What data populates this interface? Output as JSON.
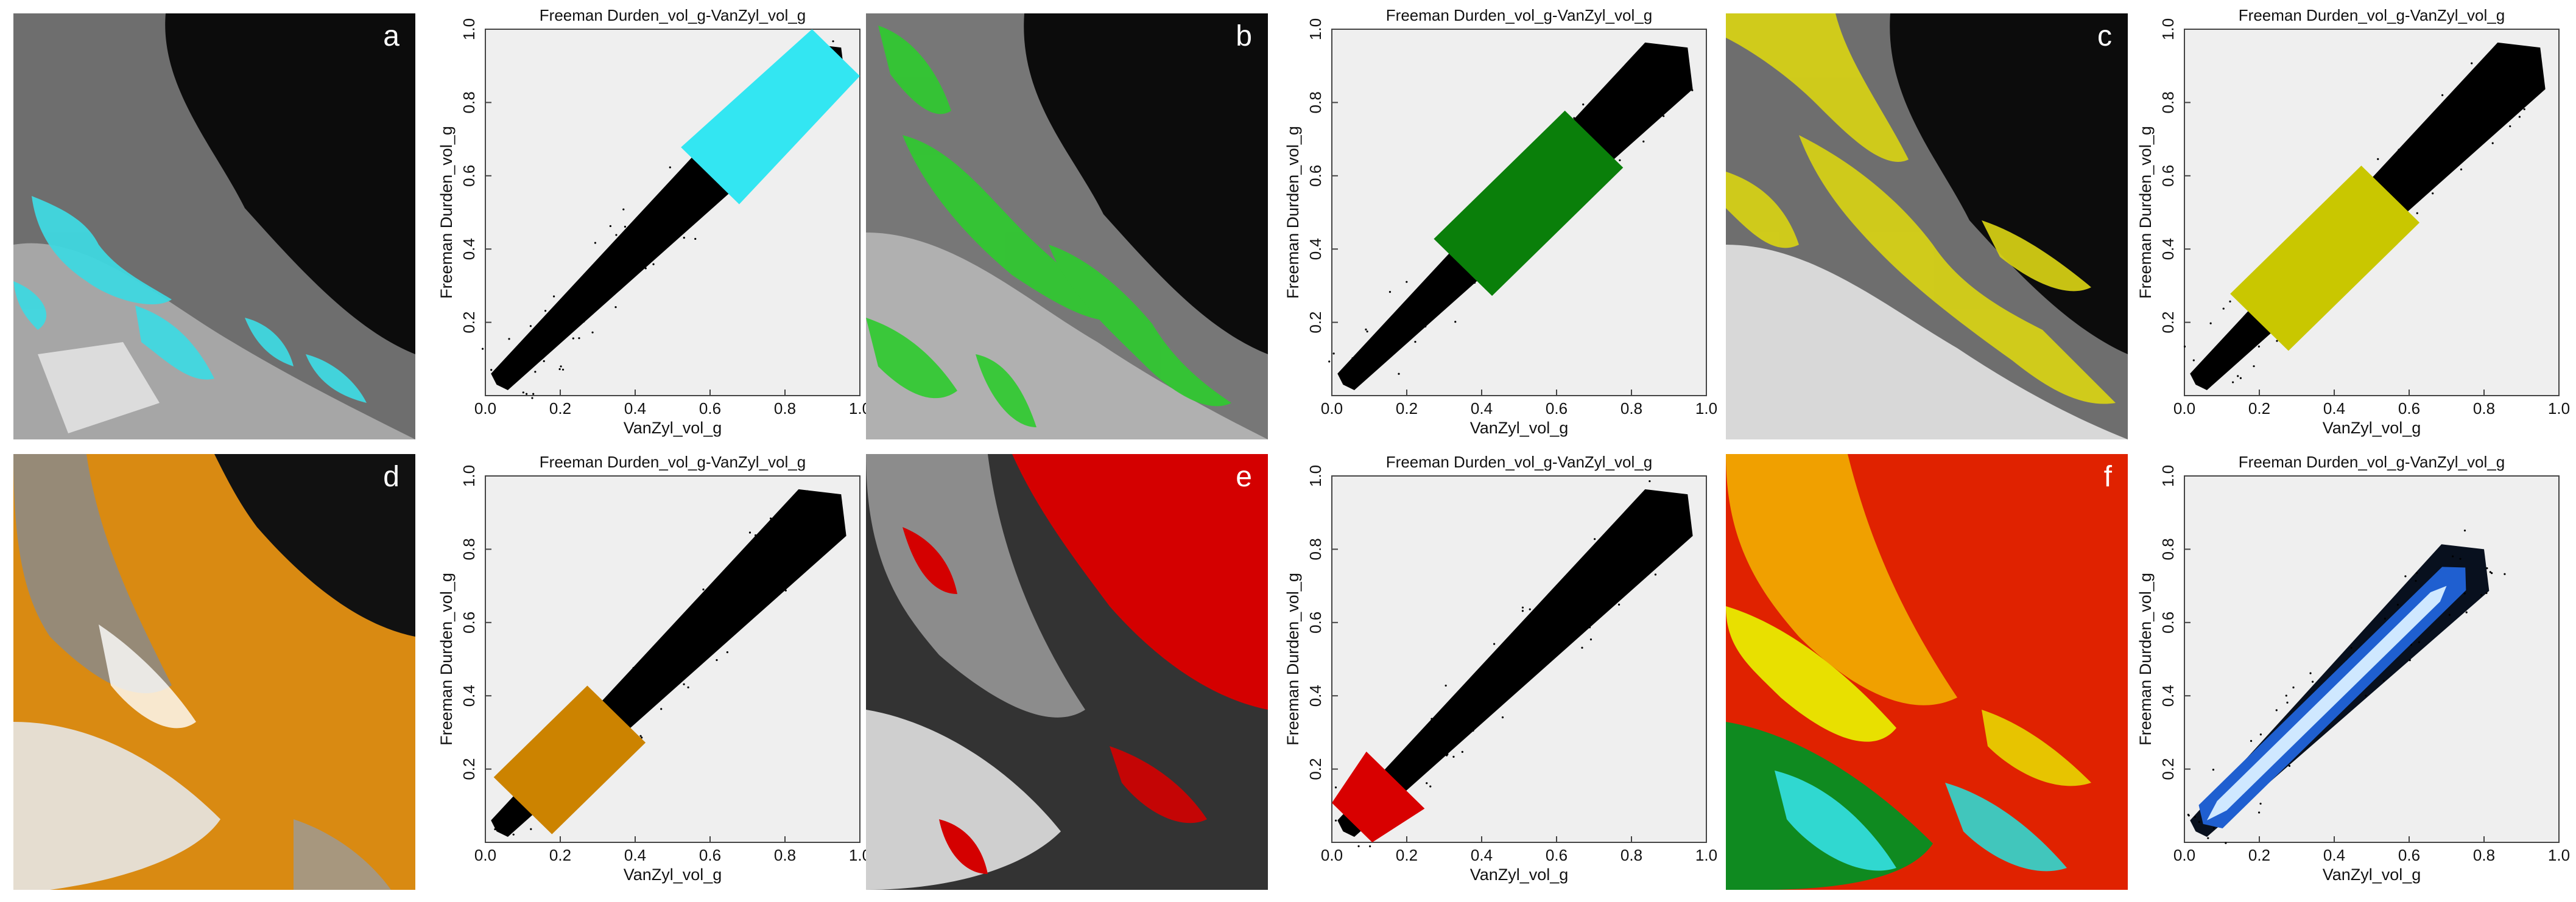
{
  "panels": [
    {
      "letter": "a",
      "map_color": "#3fd8e0",
      "scatter_class_color": "#33e6f2",
      "class_range": [
        0.6,
        0.95
      ]
    },
    {
      "letter": "b",
      "map_color": "#2ecb2e",
      "scatter_class_color": "#0a7f0a",
      "class_range": [
        0.35,
        0.7
      ]
    },
    {
      "letter": "c",
      "map_color": "#d8d214",
      "scatter_class_color": "#c9c700",
      "class_range": [
        0.2,
        0.55
      ]
    },
    {
      "letter": "d",
      "map_color": "#d98a12",
      "scatter_class_color": "#cc8300",
      "class_range": [
        0.1,
        0.35
      ]
    },
    {
      "letter": "e",
      "map_color": "#d40000",
      "scatter_class_color": "#d80000",
      "class_range": [
        0.03,
        0.17
      ]
    },
    {
      "letter": "f",
      "map_color": "#e02200",
      "scatter_class_color": "density",
      "class_range": [
        0.05,
        0.75
      ]
    }
  ],
  "chart_data": [
    {
      "type": "scatter",
      "title": "Freeman Durden_vol_g-VanZyl_vol_g",
      "xlabel": "VanZyl_vol_g",
      "ylabel": "Freeman Durden_vol_g",
      "xlim": [
        0,
        1
      ],
      "ylim": [
        0,
        1
      ],
      "xticks": [
        "0.0",
        "0.2",
        "0.4",
        "0.6",
        "0.8",
        "1.0"
      ],
      "yticks": [
        "0.2",
        "0.4",
        "0.6",
        "0.8",
        "1.0"
      ],
      "highlight_color": "#33e6f2",
      "highlight_x_range": [
        0.6,
        0.95
      ],
      "cloud_x_range": [
        0.03,
        0.95
      ]
    },
    {
      "type": "scatter",
      "title": "Freeman Durden_vol_g-VanZyl_vol_g",
      "xlabel": "VanZyl_vol_g",
      "ylabel": "Freeman Durden_vol_g",
      "xlim": [
        0,
        1
      ],
      "ylim": [
        0,
        1
      ],
      "xticks": [
        "0.0",
        "0.2",
        "0.4",
        "0.6",
        "0.8",
        "1.0"
      ],
      "yticks": [
        "0.2",
        "0.4",
        "0.6",
        "0.8",
        "1.0"
      ],
      "highlight_color": "#0a7f0a",
      "highlight_x_range": [
        0.35,
        0.7
      ],
      "cloud_x_range": [
        0.03,
        0.95
      ]
    },
    {
      "type": "scatter",
      "title": "Freeman Durden_vol_g-VanZyl_vol_g",
      "xlabel": "VanZyl_vol_g",
      "ylabel": "Freeman Durden_vol_g",
      "xlim": [
        0,
        1
      ],
      "ylim": [
        0,
        1
      ],
      "xticks": [
        "0.0",
        "0.2",
        "0.4",
        "0.6",
        "0.8",
        "1.0"
      ],
      "yticks": [
        "0.2",
        "0.4",
        "0.6",
        "0.8",
        "1.0"
      ],
      "highlight_color": "#c9c700",
      "highlight_x_range": [
        0.2,
        0.55
      ],
      "cloud_x_range": [
        0.03,
        0.95
      ]
    },
    {
      "type": "scatter",
      "title": "Freeman Durden_vol_g-VanZyl_vol_g",
      "xlabel": "VanZyl_vol_g",
      "ylabel": "Freeman Durden_vol_g",
      "xlim": [
        0,
        1
      ],
      "ylim": [
        0,
        1
      ],
      "xticks": [
        "0.0",
        "0.2",
        "0.4",
        "0.6",
        "0.8",
        "1.0"
      ],
      "yticks": [
        "0.2",
        "0.4",
        "0.6",
        "0.8",
        "1.0"
      ],
      "highlight_color": "#cc8300",
      "highlight_x_range": [
        0.1,
        0.35
      ],
      "cloud_x_range": [
        0.03,
        0.95
      ]
    },
    {
      "type": "scatter",
      "title": "Freeman Durden_vol_g-VanZyl_vol_g",
      "xlabel": "VanZyl_vol_g",
      "ylabel": "Freeman Durden_vol_g",
      "xlim": [
        0,
        1
      ],
      "ylim": [
        0,
        1
      ],
      "xticks": [
        "0.0",
        "0.2",
        "0.4",
        "0.6",
        "0.8",
        "1.0"
      ],
      "yticks": [
        "0.2",
        "0.4",
        "0.6",
        "0.8",
        "1.0"
      ],
      "highlight_color": "#d80000",
      "highlight_x_range": [
        0.03,
        0.17
      ],
      "cloud_x_range": [
        0.03,
        0.95
      ]
    },
    {
      "type": "scatter",
      "title": "Freeman Durden_vol_g-VanZyl_vol_g",
      "xlabel": "VanZyl_vol_g",
      "ylabel": "Freeman Durden_vol_g",
      "xlim": [
        0,
        1
      ],
      "ylim": [
        0,
        1
      ],
      "xticks": [
        "0.0",
        "0.2",
        "0.4",
        "0.6",
        "0.8",
        "1.0"
      ],
      "yticks": [
        "0.2",
        "0.4",
        "0.6",
        "0.8",
        "1.0"
      ],
      "highlight_color": "density",
      "highlight_x_range": [
        0.05,
        0.75
      ],
      "cloud_x_range": [
        0.03,
        0.8
      ]
    }
  ]
}
